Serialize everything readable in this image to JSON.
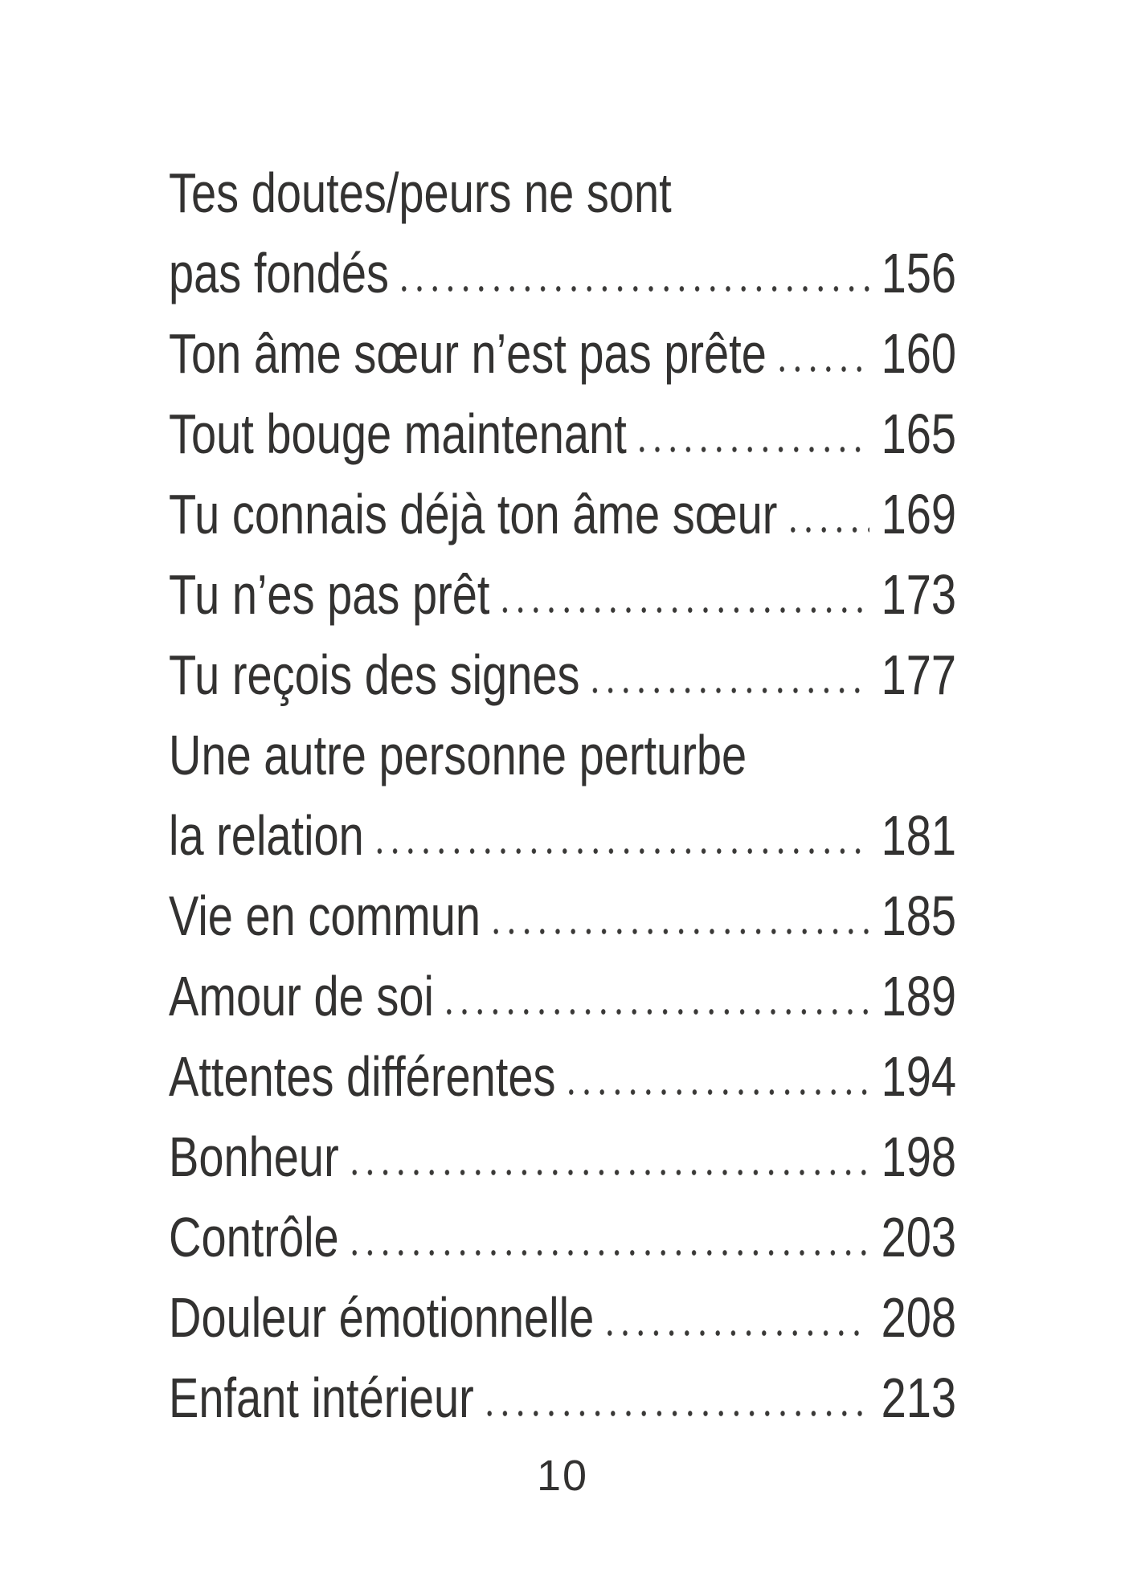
{
  "page": {
    "folio": "10",
    "text_color": "#333231",
    "background_color": "#ffffff",
    "dot_leader_color": "#3a3937"
  },
  "toc": {
    "entries": [
      {
        "title_line1": "Tes doutes/peurs ne sont",
        "title_line2": "pas fondés",
        "page": "156"
      },
      {
        "title": "Ton âme sœur n’est pas prête",
        "page": "160"
      },
      {
        "title": "Tout bouge maintenant",
        "page": "165"
      },
      {
        "title": "Tu connais déjà ton âme sœur",
        "page": "169"
      },
      {
        "title": "Tu n’es pas prêt",
        "page": "173"
      },
      {
        "title": "Tu reçois des signes",
        "page": "177"
      },
      {
        "title_line1": "Une autre personne perturbe",
        "title_line2": "la relation",
        "page": "181"
      },
      {
        "title": "Vie en commun",
        "page": "185"
      },
      {
        "title": "Amour de soi",
        "page": "189"
      },
      {
        "title": "Attentes différentes",
        "page": "194"
      },
      {
        "title": "Bonheur",
        "page": "198"
      },
      {
        "title": "Contrôle",
        "page": "203"
      },
      {
        "title": "Douleur émotionnelle",
        "page": "208"
      },
      {
        "title": "Enfant intérieur",
        "page": "213"
      }
    ]
  }
}
